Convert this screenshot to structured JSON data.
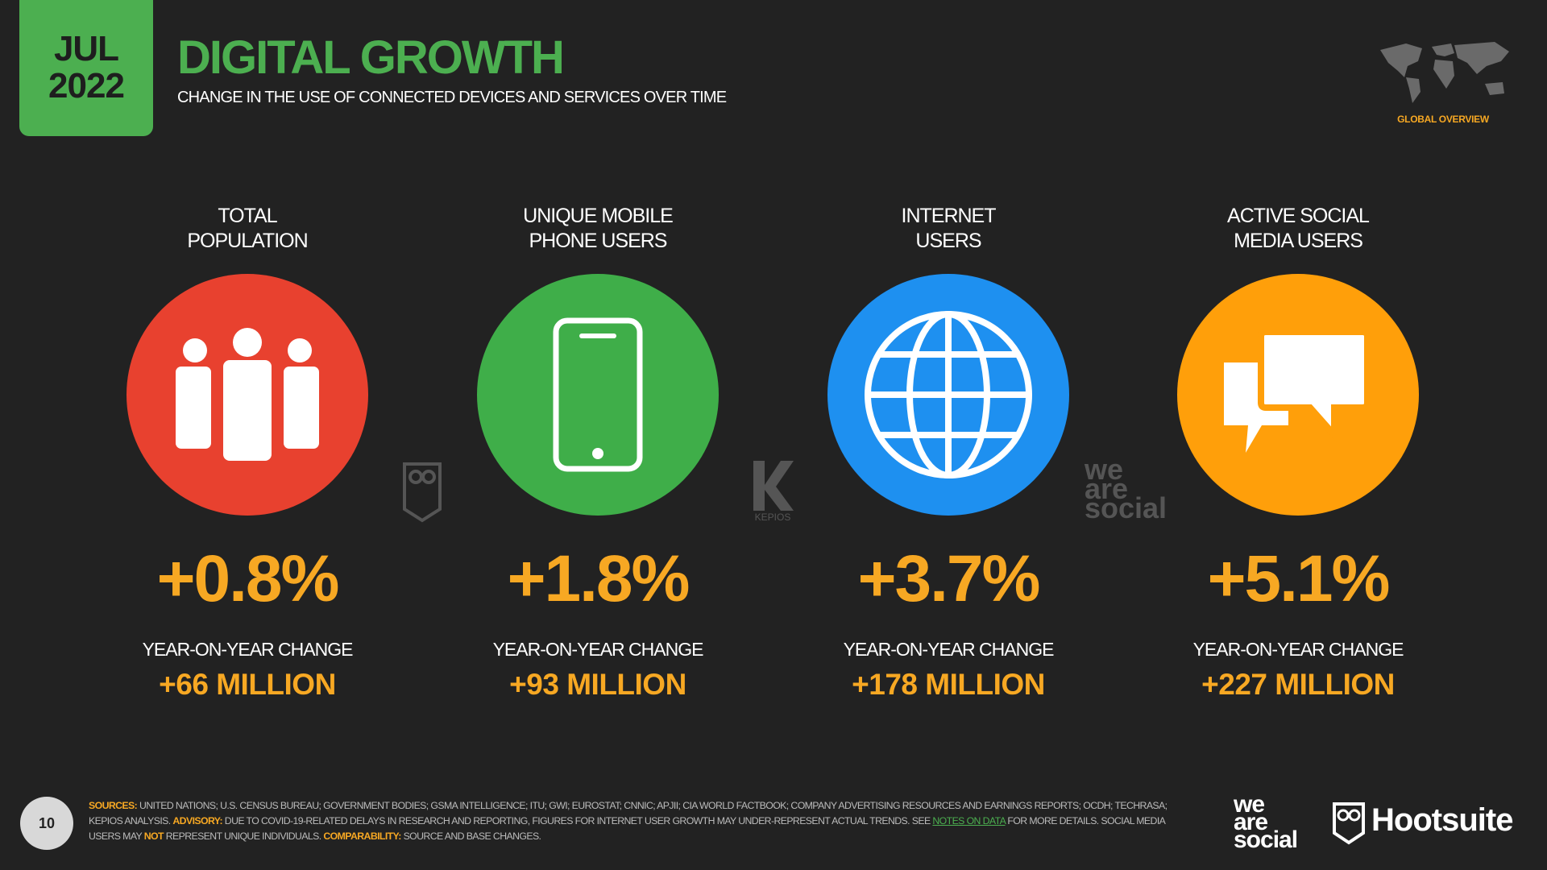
{
  "header": {
    "month": "JUL",
    "year": "2022",
    "title": "DIGITAL GROWTH",
    "subtitle": "CHANGE IN THE USE OF CONNECTED DEVICES AND SERVICES OVER TIME",
    "badge": "GLOBAL OVERVIEW"
  },
  "cards": [
    {
      "label": [
        "TOTAL",
        "POPULATION"
      ],
      "change": "+0.8%",
      "change_label": "YEAR-ON-YEAR CHANGE",
      "absolute": "+66 MILLION"
    },
    {
      "label": [
        "UNIQUE MOBILE",
        "PHONE USERS"
      ],
      "change": "+1.8%",
      "change_label": "YEAR-ON-YEAR CHANGE",
      "absolute": "+93 MILLION"
    },
    {
      "label": [
        "INTERNET",
        "USERS"
      ],
      "change": "+3.7%",
      "change_label": "YEAR-ON-YEAR CHANGE",
      "absolute": "+178 MILLION"
    },
    {
      "label": [
        "ACTIVE SOCIAL",
        "MEDIA USERS"
      ],
      "change": "+5.1%",
      "change_label": "YEAR-ON-YEAR CHANGE",
      "absolute": "+227 MILLION"
    }
  ],
  "watermarks": {
    "kepios": "KEPIOS",
    "we_are_social": [
      "we",
      "are",
      "social"
    ]
  },
  "footer": {
    "page": "10",
    "sources_label": "SOURCES:",
    "sources": "UNITED NATIONS; U.S. CENSUS BUREAU; GOVERNMENT BODIES; GSMA INTELLIGENCE; ITU; GWI; EUROSTAT; CNNIC; APJII; CIA WORLD FACTBOOK; COMPANY ADVERTISING RESOURCES AND EARNINGS REPORTS; OCDH; TECHRASA; KEPIOS ANALYSIS.",
    "advisory_label": "ADVISORY:",
    "advisory": "DUE TO COVID-19-RELATED DELAYS IN RESEARCH AND REPORTING, FIGURES FOR INTERNET USER GROWTH MAY UNDER-REPRESENT ACTUAL TRENDS. SEE",
    "notes_link": "NOTES ON DATA",
    "advisory_2": "FOR MORE DETAILS. SOCIAL MEDIA USERS MAY",
    "not": "NOT",
    "advisory_3": "REPRESENT UNIQUE INDIVIDUALS.",
    "comparability_label": "COMPARABILITY:",
    "comparability": "SOURCE AND BASE CHANGES.",
    "logo_we_are_social": [
      "we",
      "are",
      "social"
    ],
    "logo_hootsuite": "Hootsuite"
  }
}
